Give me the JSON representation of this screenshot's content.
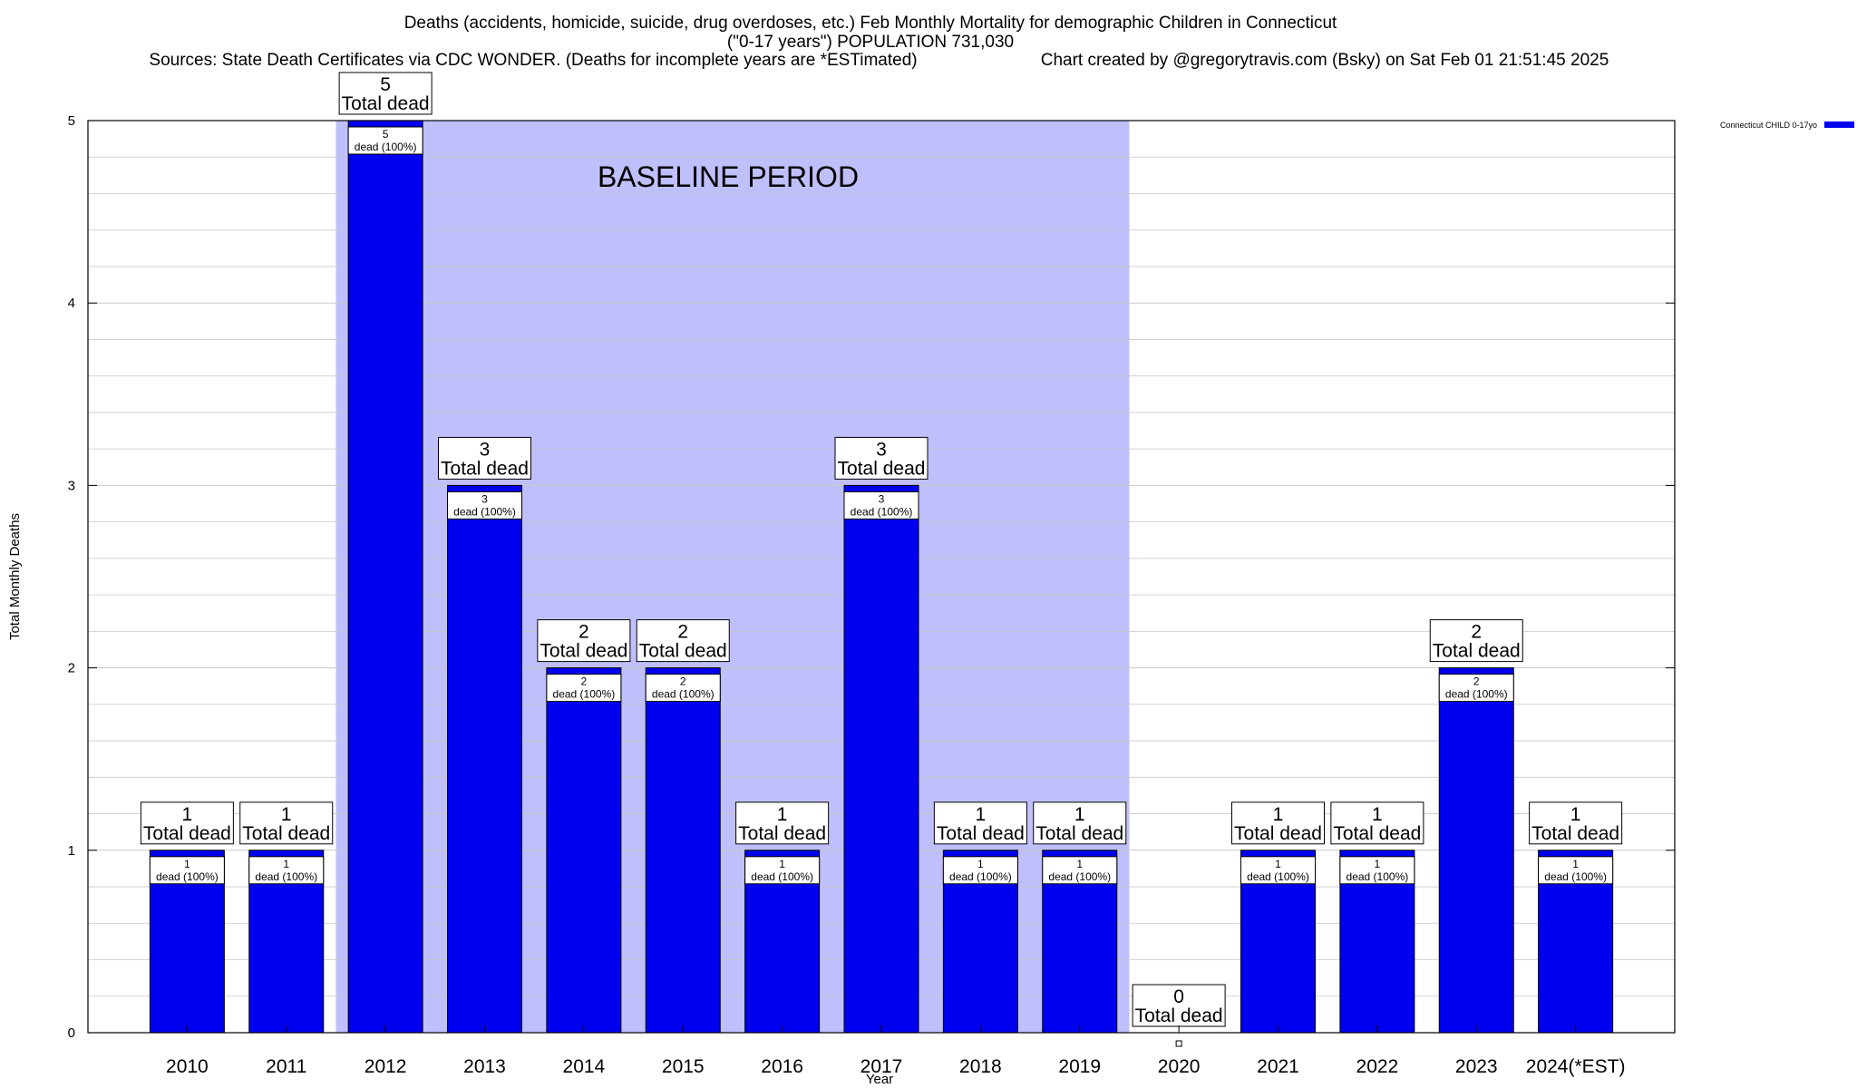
{
  "title": {
    "line1": "Deaths (accidents, homicide, suicide, drug overdoses, etc.) Feb Monthly Mortality for demographic Children in Connecticut",
    "line2": "(\"0-17 years\") POPULATION 731,030",
    "sources": "Sources: State Death Certificates via CDC WONDER. (Deaths for incomplete years are *ESTimated)",
    "credit": "Chart created by @gregorytravis.com (Bsky) on Sat Feb 01 21:51:45 2025"
  },
  "baseline_label": "BASELINE PERIOD",
  "total_label_suffix": "Total dead",
  "inner_label_suffix": "dead (100%)",
  "legend": {
    "placement": "top-right",
    "label": "Connecticut CHILD 0-17yo"
  },
  "colors": {
    "bar": "#0000ee",
    "baseline_shade": "#bfbffc",
    "grid": "#c8c8c8"
  },
  "chart_data": {
    "type": "bar",
    "categories": [
      "2010",
      "2011",
      "2012",
      "2013",
      "2014",
      "2015",
      "2016",
      "2017",
      "2018",
      "2019",
      "2020",
      "2021",
      "2022",
      "2023",
      "2024(*EST)"
    ],
    "series": [
      {
        "name": "Connecticut CHILD 0-17yo",
        "values": [
          1,
          1,
          5,
          3,
          2,
          2,
          1,
          3,
          1,
          1,
          0,
          1,
          1,
          2,
          1
        ]
      }
    ],
    "xlabel": "Year",
    "ylabel": "Total Monthly Deaths",
    "ylim": [
      0,
      5
    ],
    "yticks": [
      0,
      1,
      2,
      3,
      4,
      5
    ],
    "grid": true,
    "baseline_period": [
      "2012",
      "2019"
    ]
  }
}
